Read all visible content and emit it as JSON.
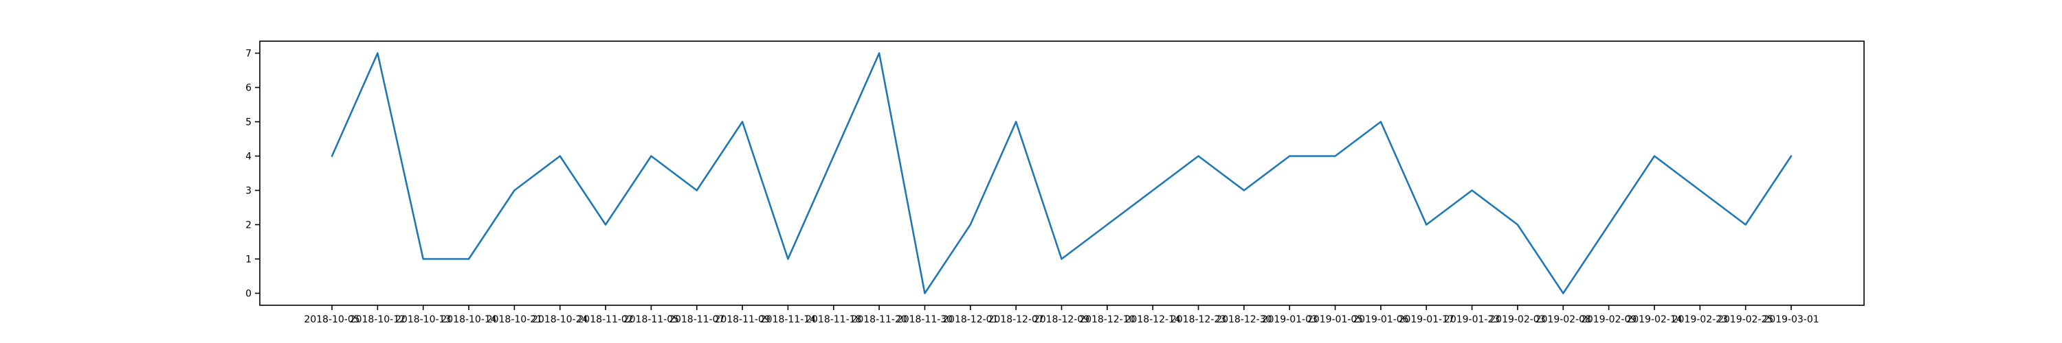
{
  "chart_data": {
    "type": "line",
    "x": [
      "2018-10-05",
      "2018-10-12",
      "2018-10-13",
      "2018-10-14",
      "2018-10-21",
      "2018-10-24",
      "2018-11-02",
      "2018-11-05",
      "2018-11-07",
      "2018-11-09",
      "2018-11-14",
      "2018-11-18",
      "2018-11-20",
      "2018-11-30",
      "2018-12-01",
      "2018-12-07",
      "2018-12-09",
      "2018-12-10",
      "2018-12-14",
      "2018-12-23",
      "2018-12-30",
      "2019-01-03",
      "2019-01-05",
      "2019-01-06",
      "2019-01-17",
      "2019-01-23",
      "2019-02-03",
      "2019-02-08",
      "2019-02-09",
      "2019-02-14",
      "2019-02-23",
      "2019-02-25",
      "2019-03-01"
    ],
    "series": [
      {
        "values": [
          4,
          7,
          1,
          1,
          3,
          4,
          2,
          4,
          3,
          5,
          1,
          4,
          7,
          0,
          2,
          5,
          1,
          2,
          3,
          4,
          3,
          4,
          4,
          5,
          2,
          3,
          2,
          0,
          2,
          4,
          3,
          2,
          4
        ]
      }
    ],
    "yticks": [
      0,
      1,
      2,
      3,
      4,
      5,
      6,
      7
    ],
    "ylim": [
      -0.35,
      7.35
    ],
    "title": "",
    "xlabel": "",
    "ylabel": "",
    "grid": false,
    "line_color": "#1f77b4"
  }
}
